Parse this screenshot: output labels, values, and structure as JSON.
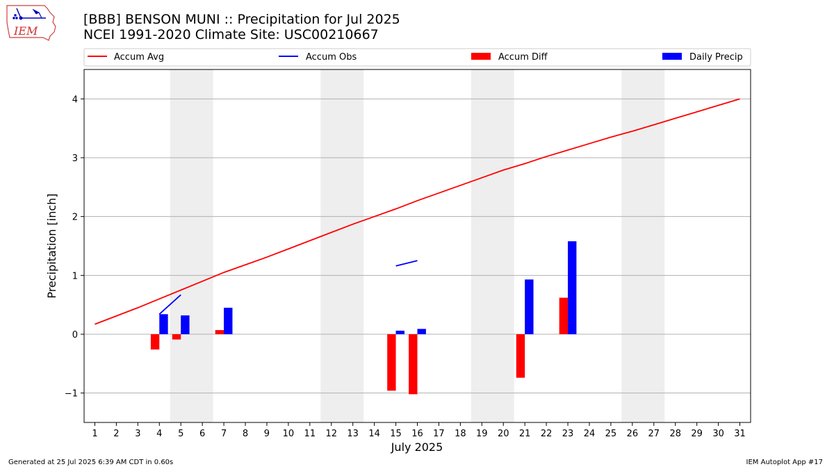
{
  "header": {
    "title_line1": "[BBB] BENSON MUNI :: Precipitation for Jul 2025",
    "title_line2": "NCEI 1991-2020 Climate Site: USC00210667",
    "logo_text": "IEM"
  },
  "footer": {
    "generated": "Generated at 25 Jul 2025 6:39 AM CDT in 0.60s",
    "app": "IEM Autoplot App #17"
  },
  "colors": {
    "accum_avg": "#ff0000",
    "accum_obs": "#0000ff",
    "accum_diff": "#ff0000",
    "daily_precip": "#0000ff",
    "weekend_shade": "#eeeeee",
    "grid": "#b0b0b0"
  },
  "chart_data": {
    "type": "bar",
    "xlabel": "July 2025",
    "ylabel": "Precipitation [inch]",
    "xlim": [
      0.5,
      31.5
    ],
    "ylim": [
      -1.5,
      4.5
    ],
    "yticks": [
      -1,
      0,
      1,
      2,
      3,
      4
    ],
    "ytick_labels": [
      "−1",
      "0",
      "1",
      "2",
      "3",
      "4"
    ],
    "x": [
      1,
      2,
      3,
      4,
      5,
      6,
      7,
      8,
      9,
      10,
      11,
      12,
      13,
      14,
      15,
      16,
      17,
      18,
      19,
      20,
      21,
      22,
      23,
      24,
      25,
      26,
      27,
      28,
      29,
      30,
      31
    ],
    "xtick_labels": [
      "1",
      "2",
      "3",
      "4",
      "5",
      "6",
      "7",
      "8",
      "9",
      "10",
      "11",
      "12",
      "13",
      "14",
      "15",
      "16",
      "17",
      "18",
      "19",
      "20",
      "21",
      "22",
      "23",
      "24",
      "25",
      "26",
      "27",
      "28",
      "29",
      "30",
      "31"
    ],
    "grid": "horizontal",
    "legend_placement": "top",
    "weekend_spans": [
      [
        4.5,
        6.5
      ],
      [
        11.5,
        13.5
      ],
      [
        18.5,
        20.5
      ],
      [
        25.5,
        27.5
      ]
    ],
    "series": [
      {
        "name": "Accum Avg",
        "kind": "line",
        "x": [
          1,
          2,
          3,
          4,
          5,
          6,
          7,
          8,
          9,
          10,
          11,
          12,
          13,
          14,
          15,
          16,
          17,
          18,
          19,
          20,
          21,
          22,
          23,
          24,
          25,
          26,
          27,
          28,
          29,
          30,
          31
        ],
        "values": [
          0.17,
          0.31,
          0.45,
          0.6,
          0.75,
          0.9,
          1.05,
          1.18,
          1.31,
          1.45,
          1.59,
          1.73,
          1.87,
          2.0,
          2.13,
          2.27,
          2.4,
          2.53,
          2.66,
          2.79,
          2.9,
          3.02,
          3.13,
          3.24,
          3.35,
          3.45,
          3.56,
          3.67,
          3.78,
          3.89,
          4.0
        ]
      },
      {
        "name": "Accum Obs",
        "kind": "line",
        "segments": [
          {
            "x": [
              4,
              5
            ],
            "values": [
              0.34,
              0.67
            ]
          },
          {
            "x": [
              15,
              16
            ],
            "values": [
              1.16,
              1.25
            ]
          }
        ]
      },
      {
        "name": "Accum Diff",
        "kind": "bar",
        "x": [
          4,
          5,
          7,
          15,
          16,
          21,
          23
        ],
        "values": [
          -0.26,
          -0.09,
          0.07,
          -0.96,
          -1.02,
          -0.74,
          0.62
        ]
      },
      {
        "name": "Daily Precip",
        "kind": "bar",
        "x": [
          4,
          5,
          7,
          15,
          16,
          21,
          23
        ],
        "values": [
          0.34,
          0.32,
          0.45,
          0.06,
          0.09,
          0.93,
          1.58
        ]
      }
    ]
  }
}
